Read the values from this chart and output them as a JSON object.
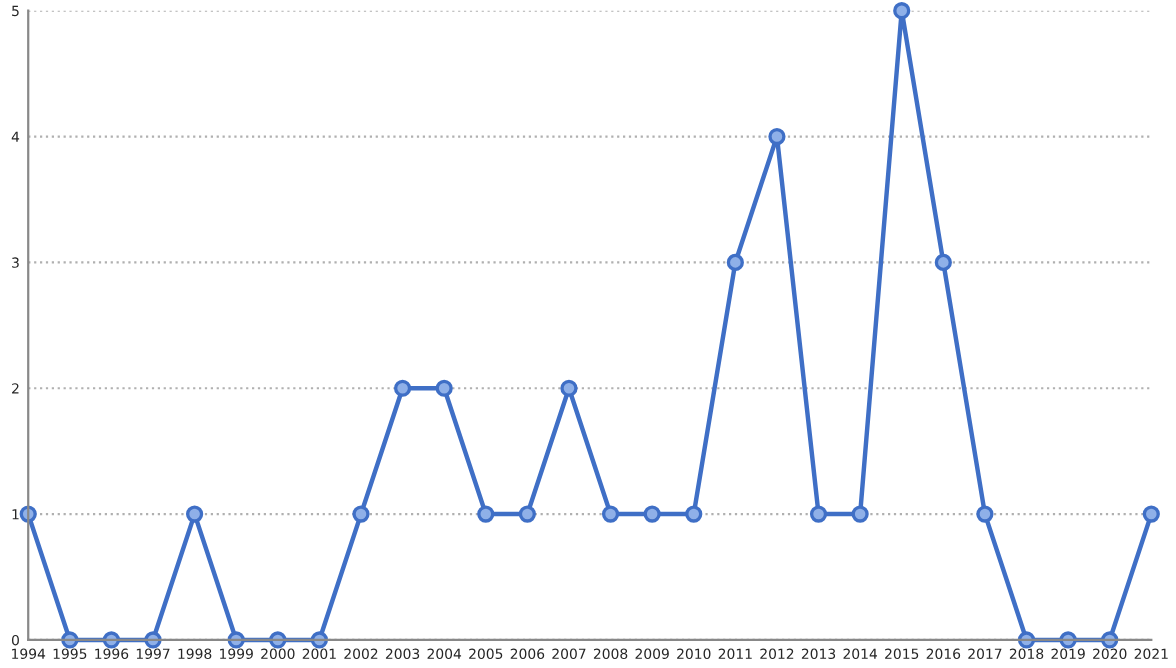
{
  "chart_data": {
    "type": "line",
    "categories": [
      "1994",
      "1995",
      "1996",
      "1997",
      "1998",
      "1999",
      "2000",
      "2001",
      "2002",
      "2003",
      "2004",
      "2005",
      "2006",
      "2007",
      "2008",
      "2009",
      "2010",
      "2011",
      "2012",
      "2013",
      "2014",
      "2015",
      "2016",
      "2017",
      "2018",
      "2019",
      "2020",
      "2021"
    ],
    "series": [
      {
        "color": "#3f6fc6",
        "values": [
          1,
          0,
          0,
          0,
          1,
          0,
          0,
          0,
          1,
          2,
          2,
          1,
          1,
          2,
          1,
          1,
          1,
          3,
          4,
          1,
          1,
          5,
          3,
          1,
          0,
          0,
          0,
          1
        ]
      }
    ],
    "ylim": [
      0,
      5
    ],
    "yticks": [
      0,
      1,
      2,
      3,
      4,
      5
    ],
    "grid": "y",
    "marker": "circle",
    "line_style": "solid"
  }
}
